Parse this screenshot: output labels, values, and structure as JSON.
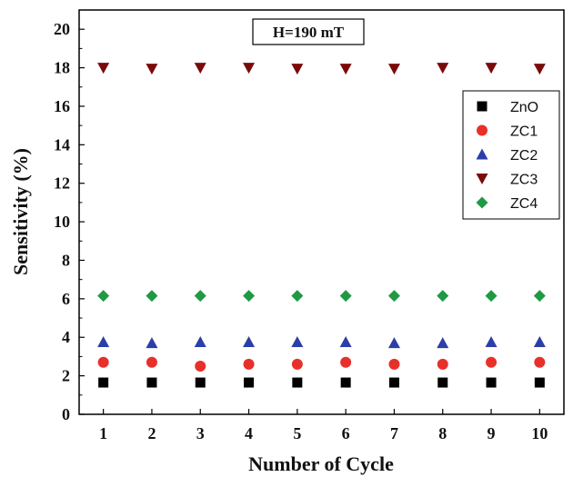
{
  "chart_data": {
    "type": "scatter",
    "title": "",
    "xlabel": "Number of Cycle",
    "ylabel": "Sensitivity (%)",
    "xlim": [
      0.5,
      10.5
    ],
    "ylim": [
      0,
      21
    ],
    "xticks": [
      1,
      2,
      3,
      4,
      5,
      6,
      7,
      8,
      9,
      10
    ],
    "yticks": [
      0,
      2,
      4,
      6,
      8,
      10,
      12,
      14,
      16,
      18,
      20
    ],
    "grid": false,
    "legend_position": "right",
    "annotation": "H=190 mT",
    "x": [
      1,
      2,
      3,
      4,
      5,
      6,
      7,
      8,
      9,
      10
    ],
    "series": [
      {
        "name": "ZnO",
        "marker": "square",
        "color": "#000000",
        "values": [
          1.65,
          1.65,
          1.65,
          1.65,
          1.65,
          1.65,
          1.65,
          1.65,
          1.65,
          1.65
        ]
      },
      {
        "name": "ZC1",
        "marker": "circle",
        "color": "#e8302a",
        "values": [
          2.7,
          2.7,
          2.5,
          2.6,
          2.6,
          2.7,
          2.6,
          2.6,
          2.7,
          2.7
        ]
      },
      {
        "name": "ZC2",
        "marker": "triangle-up",
        "color": "#2d3ea8",
        "values": [
          3.75,
          3.7,
          3.75,
          3.75,
          3.75,
          3.75,
          3.7,
          3.7,
          3.75,
          3.75
        ]
      },
      {
        "name": "ZC3",
        "marker": "triangle-down",
        "color": "#7a0a0a",
        "values": [
          18.0,
          17.95,
          18.0,
          18.0,
          17.95,
          17.95,
          17.95,
          18.0,
          18.0,
          17.95
        ]
      },
      {
        "name": "ZC4",
        "marker": "diamond",
        "color": "#1e9a45",
        "values": [
          6.15,
          6.15,
          6.15,
          6.15,
          6.15,
          6.15,
          6.15,
          6.15,
          6.15,
          6.15
        ]
      }
    ]
  }
}
